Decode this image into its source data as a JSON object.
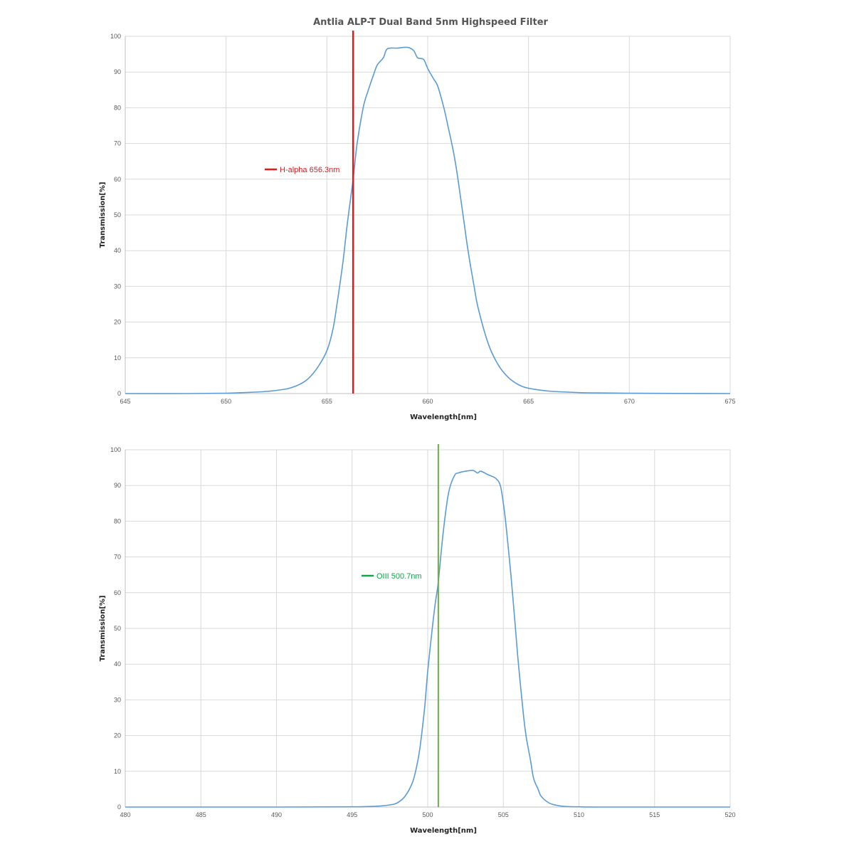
{
  "title": "Antlia ALP-T Dual Band 5nm Highspeed Filter",
  "colors": {
    "curve": "#5B9BD5",
    "grid": "#D9D9D9",
    "halpha": "#E31A1C",
    "oiii_line": "#70AD47",
    "oiii_label": "#12A34B"
  },
  "chart_data": [
    {
      "type": "line",
      "xlabel": "Wavelength[nm]",
      "ylabel": "Transmission[%]",
      "xlim": [
        645,
        675
      ],
      "ylim": [
        0,
        100
      ],
      "xticks": [
        "645",
        "650",
        "655",
        "660",
        "665",
        "670",
        "675"
      ],
      "yticks": [
        "0",
        "10",
        "20",
        "30",
        "40",
        "50",
        "60",
        "70",
        "80",
        "90",
        "100"
      ],
      "grid": true,
      "marker": {
        "x": 656.3,
        "label": "H-alpha 656.3nm",
        "color": "#E31A1C"
      },
      "series": [
        {
          "x": [
            645,
            648,
            650,
            651,
            652,
            653,
            653.5,
            654,
            654.5,
            655,
            655.3,
            655.5,
            655.8,
            656,
            656.3,
            656.5,
            656.8,
            657,
            657.3,
            657.5,
            657.8,
            658,
            658.5,
            659,
            659.3,
            659.5,
            659.8,
            660,
            660.3,
            660.5,
            660.8,
            661,
            661.3,
            661.5,
            661.8,
            662,
            662.3,
            662.5,
            663,
            663.5,
            664,
            664.5,
            665,
            666,
            667,
            668,
            670,
            675
          ],
          "y": [
            0,
            0,
            0.1,
            0.3,
            0.6,
            1.3,
            2.2,
            3.8,
            7,
            12,
            18,
            25,
            37,
            47,
            60,
            70,
            80,
            84,
            89,
            92,
            94,
            96.5,
            96.7,
            96.9,
            96,
            94,
            93.5,
            91,
            88,
            86,
            80,
            75,
            67,
            60,
            48,
            40,
            30,
            24,
            14,
            8,
            4.5,
            2.5,
            1.5,
            0.7,
            0.4,
            0.2,
            0.1,
            0
          ]
        }
      ]
    },
    {
      "type": "line",
      "xlabel": "Wavelength[nm]",
      "ylabel": "Transmission[%]",
      "xlim": [
        480,
        520
      ],
      "ylim": [
        0,
        100
      ],
      "xticks": [
        "480",
        "485",
        "490",
        "495",
        "500",
        "505",
        "510",
        "515",
        "520"
      ],
      "yticks": [
        "0",
        "10",
        "20",
        "30",
        "40",
        "50",
        "60",
        "70",
        "80",
        "90",
        "100"
      ],
      "grid": true,
      "marker": {
        "x": 500.7,
        "label": "OIII 500.7nm",
        "color": "#70AD47"
      },
      "series": [
        {
          "x": [
            480,
            490,
            495,
            496.5,
            497.5,
            498,
            498.5,
            499,
            499.3,
            499.5,
            499.8,
            500,
            500.3,
            500.5,
            500.7,
            501,
            501.3,
            501.5,
            501.8,
            502,
            502.5,
            503,
            503.3,
            503.5,
            504,
            504.5,
            504.8,
            505,
            505.2,
            505.5,
            505.8,
            506,
            506.3,
            506.5,
            506.8,
            507,
            507.3,
            507.5,
            508,
            508.5,
            509,
            510,
            512,
            520
          ],
          "y": [
            0,
            0,
            0.05,
            0.2,
            0.6,
            1.2,
            3,
            7,
            12,
            17,
            28,
            38,
            50,
            57,
            63,
            76,
            86,
            90,
            93,
            93.5,
            94,
            94.2,
            93.5,
            94,
            93,
            92,
            90,
            85,
            78,
            65,
            50,
            40,
            27,
            20,
            13,
            8,
            5,
            3,
            1.2,
            0.5,
            0.2,
            0.05,
            0,
            0
          ]
        }
      ]
    }
  ]
}
